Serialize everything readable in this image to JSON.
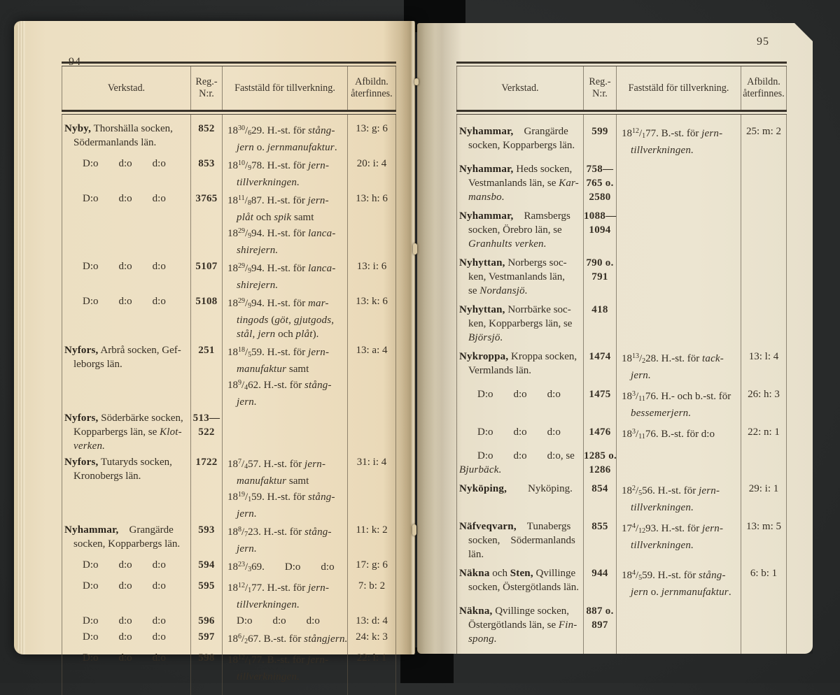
{
  "colors": {
    "background": "#2a2c2c",
    "paper_left": "#ecdfc2",
    "paper_right": "#ebe4d0",
    "ink": "#352e24",
    "rule": "#39332a"
  },
  "page_left": {
    "number": "94",
    "header": {
      "col1": [
        "Verkstad."
      ],
      "col2": [
        "Reg.-",
        "N:r."
      ],
      "col3": [
        "Faststäld för tillverkning."
      ],
      "col4": [
        "Afbildn.",
        "återfinnes."
      ]
    },
    "rows": [
      {
        "verkstad": [
          "**Nyby,** Thorshälla socken,",
          ">Södermanlands län."
        ],
        "reg": [
          "852"
        ],
        "till": [
          "18^{30}/_{6}29.  H.-st. för *stång-*",
          ">*jern* o. *jernmanufaktur*."
        ],
        "afb": "13: g: 6"
      },
      {
        "verkstad": [
          ">>D:o\td:o\td:o"
        ],
        "reg": [
          "853"
        ],
        "till": [
          "18^{10}/_{9}78.  H.-st. för *jern-*",
          ">*tillverkningen.*"
        ],
        "afb": "20: i: 4"
      },
      {
        "verkstad": [
          ">>D:o\td:o\td:o"
        ],
        "reg": [
          "3765"
        ],
        "till": [
          "18^{11}/_{8}87.  H.-st. för *jern-*",
          ">*plåt* och *spik* samt",
          "18^{29}/_{9}94.  H.-st. för *lanca-*",
          ">*shirejern.*"
        ],
        "afb": "13: h: 6"
      },
      {
        "verkstad": [
          ">>D:o\td:o\td:o"
        ],
        "reg": [
          "5107"
        ],
        "till": [
          "18^{29}/_{9}94.  H.-st. för *lanca-*",
          ">*shirejern.*"
        ],
        "afb": "13: i: 6"
      },
      {
        "verkstad": [
          ">>D:o\td:o\td:o"
        ],
        "reg": [
          "5108"
        ],
        "till": [
          "18^{29}/_{9}94.  H.-st. för *mar-*",
          ">*tingods* (*göt, gjutgods,*",
          ">*stål, jern* och *plåt*)."
        ],
        "afb": "13: k: 6"
      },
      {
        "verkstad": [
          "**Nyfors,** Arbrå socken, Gef-",
          ">leborgs län."
        ],
        "reg": [
          "251"
        ],
        "till": [
          "18^{18}/_{5}59.  H.-st. för *jern-*",
          ">*manufaktur* samt",
          "18^{9}/_{4}62.  H.-st. för *stång-*",
          ">*jern.*"
        ],
        "afb": "13: a: 4"
      },
      {
        "verkstad": [
          "**Nyfors,** Söderbärke socken,",
          ">Kopparbergs län, se *Klot-*",
          ">*verken.*"
        ],
        "reg": [
          "513—",
          "522"
        ],
        "till": [],
        "afb": ""
      },
      {
        "verkstad": [
          "**Nyfors,** Tutaryds socken,",
          ">Kronobergs län."
        ],
        "reg": [
          "1722"
        ],
        "till": [
          "18^{7}/_{4}57.  H.-st. för *jern-*",
          ">*manufaktur* samt",
          "18^{19}/_{1}59.  H.-st. för *stång-*",
          ">*jern.*"
        ],
        "afb": "31: i: 4"
      },
      {
        "verkstad": [
          "**Nyhammar,** Grangärde",
          ">socken, Kopparbergs län."
        ],
        "reg": [
          "593"
        ],
        "till": [
          "18^{8}/_{7}23.  H.-st. för *stång-*",
          ">*jern.*"
        ],
        "afb": "11: k: 2"
      },
      {
        "verkstad": [
          ">>D:o\td:o\td:o"
        ],
        "reg": [
          "594"
        ],
        "till": [
          "18^{23}/_{3}69.\tD:o\td:o"
        ],
        "afb": "17: g: 6"
      },
      {
        "verkstad": [
          ">>D:o\td:o\td:o"
        ],
        "reg": [
          "595"
        ],
        "till": [
          "18^{12}/_{1}77.  H.-st. för *jern-*",
          ">*tillverkningen.*"
        ],
        "afb": "7: b: 2"
      },
      {
        "verkstad": [
          ">>D:o\td:o\td:o"
        ],
        "reg": [
          "596"
        ],
        "till": [
          ">D:o\td:o\td:o"
        ],
        "afb": "13: d: 4"
      },
      {
        "verkstad": [
          ">>D:o\td:o\td:o"
        ],
        "reg": [
          "597"
        ],
        "till": [
          "18^{6}/_{2}67. B.-st. för *stångjern.*"
        ],
        "afb": "24: k: 3"
      },
      {
        "verkstad": [
          ">>D:o\td:o\td:o"
        ],
        "reg": [
          "598"
        ],
        "till": [
          "18^{12}/_{1}77.  B.-st. för *jern-*",
          ">*tillverkningen.*"
        ],
        "afb": "22: l: 1"
      }
    ]
  },
  "page_right": {
    "number": "95",
    "header": {
      "col1": [
        "Verkstad."
      ],
      "col2": [
        "Reg.-",
        "N:r."
      ],
      "col3": [
        "Faststäld för tillverkning."
      ],
      "col4": [
        "Afbildn.",
        "återfinnes."
      ]
    },
    "rows": [
      {
        "verkstad": [
          "**Nyhammar,** Grangärde",
          ">socken, Kopparbergs län."
        ],
        "reg": [
          "599"
        ],
        "till": [
          "18^{12}/_{1}77.  B.-st. för *jern-*",
          ">*tillverkningen.*"
        ],
        "afb": "25: m: 2"
      },
      {
        "verkstad": [
          "**Nyhammar,** Heds socken,",
          ">Vestmanlands län, se *Kar-*",
          ">*mansbo.*"
        ],
        "reg": [
          "758—",
          "765 o.",
          "2580"
        ],
        "till": [],
        "afb": ""
      },
      {
        "verkstad": [
          "**Nyhammar,** Ramsbergs",
          ">socken, Örebro län, se",
          ">*Granhults verken.*"
        ],
        "reg": [
          "1088—",
          "1094"
        ],
        "till": [],
        "afb": ""
      },
      {
        "verkstad": [
          "**Nyhyttan,** Norbergs soc-",
          ">ken, Vestmanlands län,",
          ">se *Nordansjö.*"
        ],
        "reg": [
          "790 o.",
          "791"
        ],
        "till": [],
        "afb": ""
      },
      {
        "verkstad": [
          "**Nyhyttan,** Norrbärke soc-",
          ">ken, Kopparbergs län, se",
          ">*Björsjö.*"
        ],
        "reg": [
          "418"
        ],
        "till": [],
        "afb": ""
      },
      {
        "verkstad": [
          "**Nykroppa,** Kroppa socken,",
          ">Vermlands län."
        ],
        "reg": [
          "1474"
        ],
        "till": [
          "18^{13}/_{2}28.  H.-st. för *tack-*",
          ">*jern.*"
        ],
        "afb": "13: l: 4"
      },
      {
        "verkstad": [
          ">>D:o\td:o\td:o"
        ],
        "reg": [
          "1475"
        ],
        "till": [
          "18^{3}/_{11}76. H.- och b.-st. för",
          ">*bessemerjern.*"
        ],
        "afb": "26: h: 3"
      },
      {
        "verkstad": [
          ">>D:o\td:o\td:o"
        ],
        "reg": [
          "1476"
        ],
        "till": [
          "18^{3}/_{11}76.  B.-st. för d:o"
        ],
        "afb": "22: n: 1"
      },
      {
        "verkstad": [
          ">>D:o\td:o\td:o, se",
          "*Bjurbäck.*"
        ],
        "reg": [
          "1285 o.",
          "1286"
        ],
        "till": [],
        "afb": ""
      },
      {
        "verkstad": [
          "**Nyköping,**  Nyköping."
        ],
        "reg": [
          "854"
        ],
        "till": [
          "18^{2}/_{5}56.  H.-st. för *jern-*",
          ">*tillverkningen.*"
        ],
        "afb": "29: i: 1"
      },
      {
        "verkstad": [
          "**Näfveqvarn,** Tunabergs",
          ">socken, Södermanlands",
          ">län."
        ],
        "reg": [
          "855"
        ],
        "till": [
          "17^{4}/_{12}93.  H.-st. för *jern-*",
          ">*tillverkningen.*"
        ],
        "afb": "13: m: 5"
      },
      {
        "verkstad": [
          "**Näkna** och **Sten,** Qvillinge",
          ">socken, Östergötlands län."
        ],
        "reg": [
          "944"
        ],
        "till": [
          "18^{4}/_{5}59.  H.-st. för *stång-*",
          ">*jern* o. *jernmanufaktur*."
        ],
        "afb": "6: b: 1"
      },
      {
        "verkstad": [
          "**Näkna,** Qvillinge socken,",
          ">Östergötlands län, se *Fin-*",
          ">*spong.*"
        ],
        "reg": [
          "887 o.",
          "897"
        ],
        "till": [],
        "afb": ""
      }
    ]
  }
}
